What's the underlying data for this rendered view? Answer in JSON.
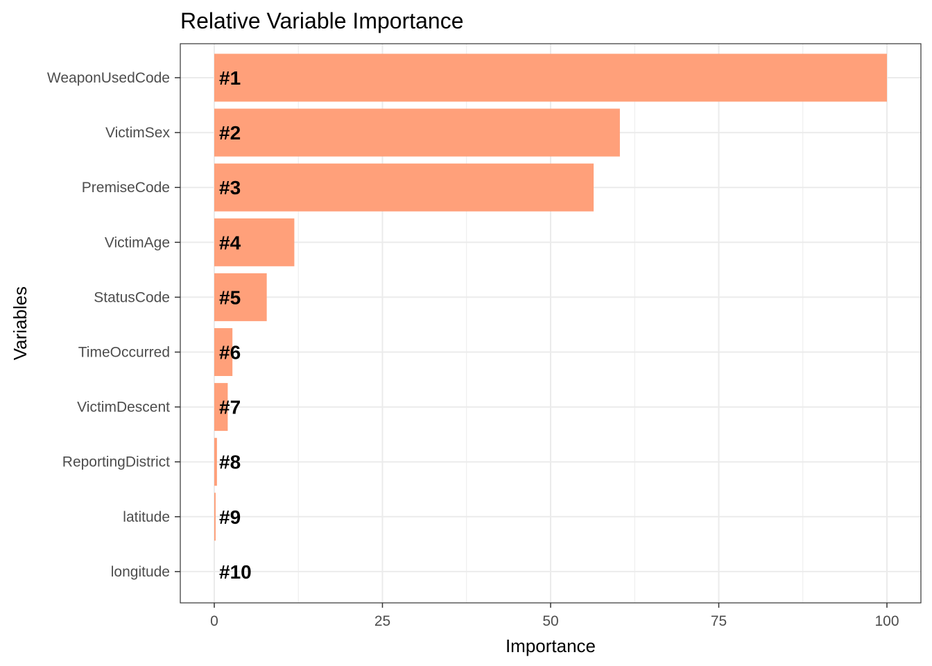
{
  "chart_data": {
    "type": "bar",
    "orientation": "horizontal",
    "title": "Relative Variable Importance",
    "xlabel": "Importance",
    "ylabel": "Variables",
    "xlim": [
      0,
      100
    ],
    "x_ticks": [
      0,
      25,
      50,
      75,
      100
    ],
    "grid": true,
    "bar_color": "#ffa07a",
    "categories": [
      "WeaponUsedCode",
      "VictimSex",
      "PremiseCode",
      "VictimAge",
      "StatusCode",
      "TimeOccurred",
      "VictimDescent",
      "ReportingDistrict",
      "latitude",
      "longitude"
    ],
    "values": [
      100,
      60.3,
      56.4,
      11.9,
      7.8,
      2.7,
      2.0,
      0.4,
      0.2,
      0
    ],
    "bar_labels": [
      "#1",
      "#2",
      "#3",
      "#4",
      "#5",
      "#6",
      "#7",
      "#8",
      "#9",
      "#10"
    ]
  }
}
